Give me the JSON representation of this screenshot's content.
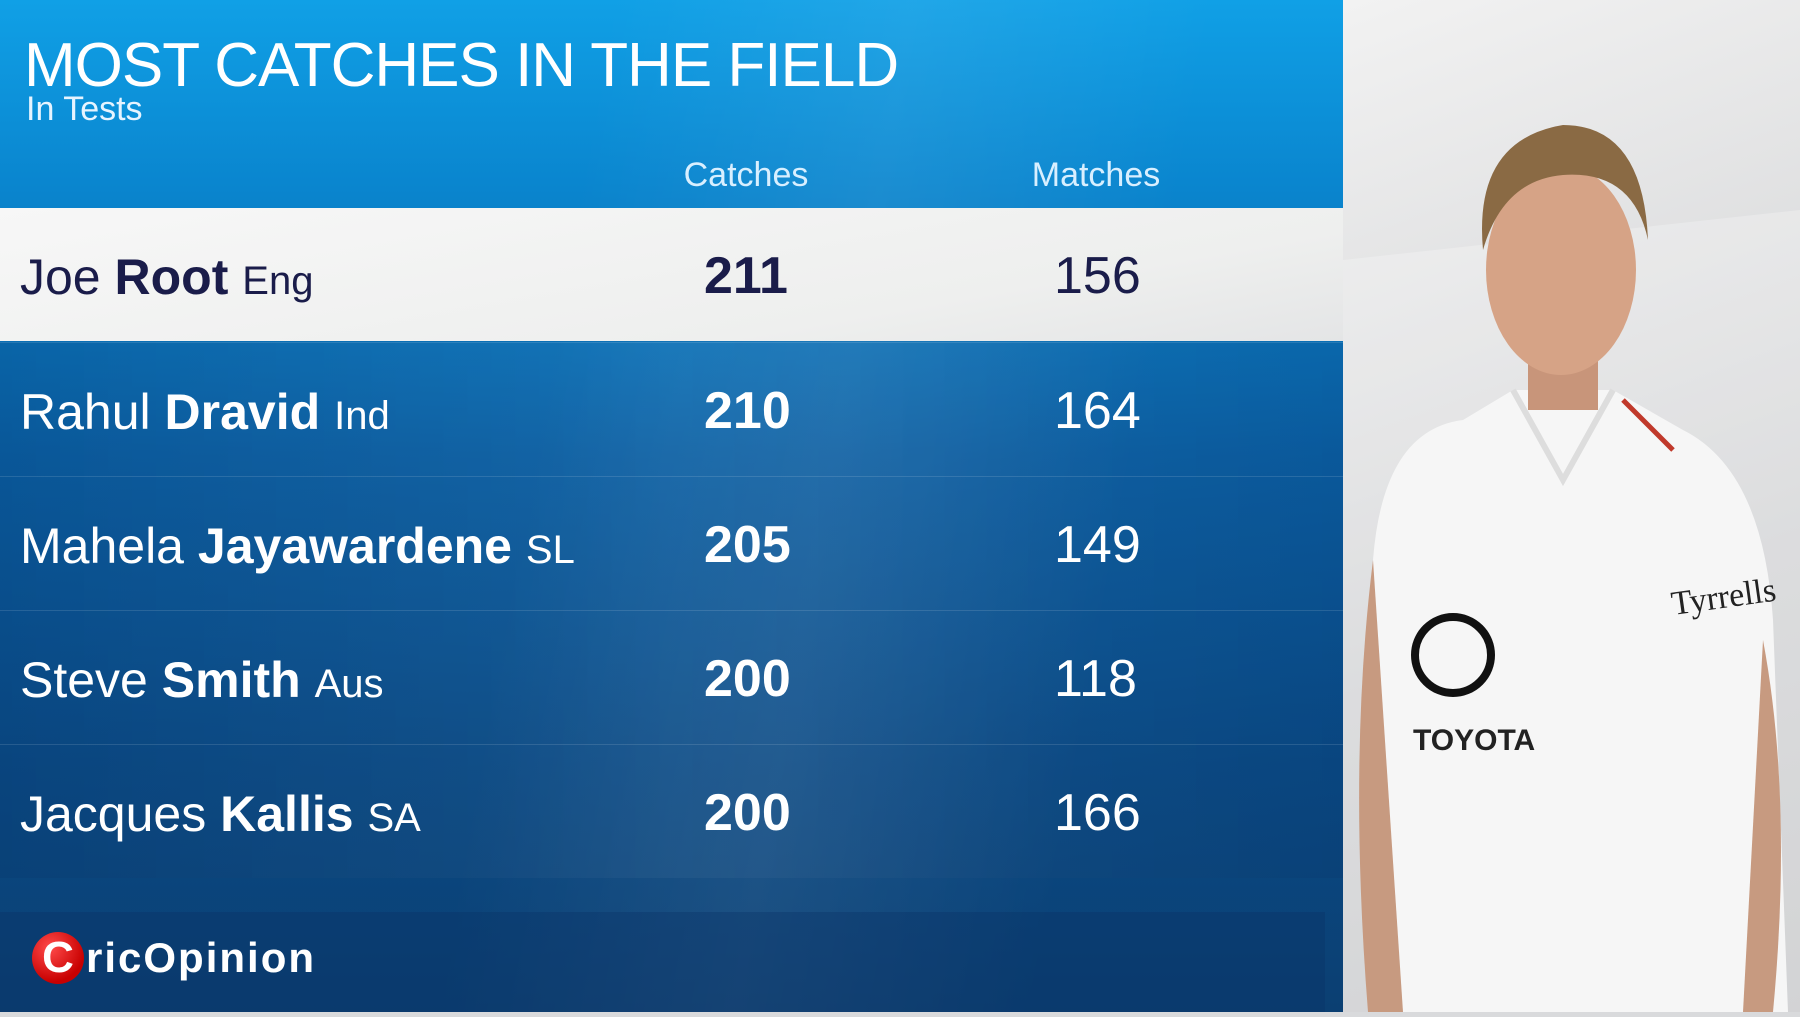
{
  "title": "MOST CATCHES IN THE FIELD",
  "subtitle": "In Tests",
  "columns": {
    "catches": "Catches",
    "matches": "Matches"
  },
  "rows": [
    {
      "first": "Joe",
      "last": "Root",
      "country": "Eng",
      "catches": "211",
      "matches": "156",
      "highlighted": true
    },
    {
      "first": "Rahul",
      "last": "Dravid",
      "country": "Ind",
      "catches": "210",
      "matches": "164"
    },
    {
      "first": "Mahela",
      "last": "Jayawardene",
      "country": "SL",
      "catches": "205",
      "matches": "149"
    },
    {
      "first": "Steve",
      "last": "Smith",
      "country": "Aus",
      "catches": "200",
      "matches": "118"
    },
    {
      "first": "Jacques",
      "last": "Kallis",
      "country": "SA",
      "catches": "200",
      "matches": "166"
    }
  ],
  "watermark": {
    "initial": "C",
    "text": "ricOpinion"
  },
  "player_shirt": {
    "sponsor": "TOYOTA",
    "sleeve": "Tyrrells"
  },
  "colors": {
    "panel_top": "#10a0e6",
    "panel_bottom": "#0b3f72",
    "highlight_row": "#f2f2f2",
    "highlight_text": "#1a1c4a",
    "logo_red": "#d00000"
  }
}
